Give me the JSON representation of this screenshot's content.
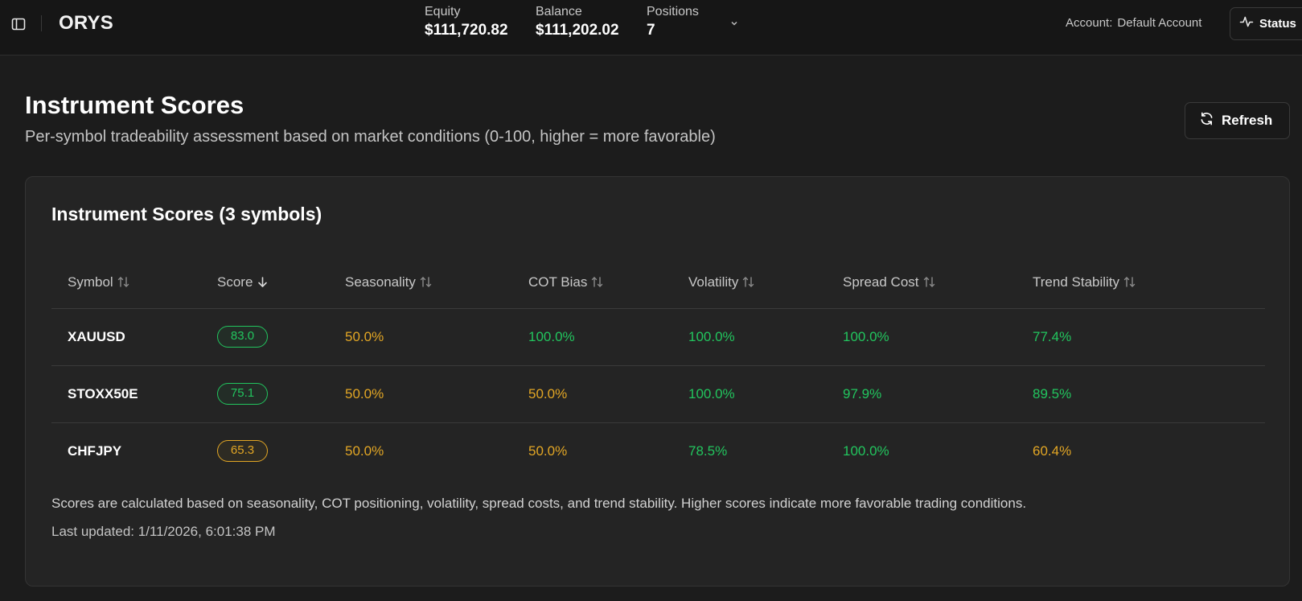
{
  "app": {
    "brand": "ORYS"
  },
  "topbar": {
    "stats": [
      {
        "label": "Equity",
        "value": "$111,720.82"
      },
      {
        "label": "Balance",
        "value": "$111,202.02"
      },
      {
        "label": "Positions",
        "value": "7"
      }
    ],
    "account_label": "Account:",
    "account_name": "Default Account",
    "status_label": "Status",
    "icons": {
      "sidebar_toggle": "sidebar-panel-icon",
      "stats_expand": "chevron-down-icon",
      "status": "activity-pulse-icon"
    }
  },
  "page": {
    "title": "Instrument Scores",
    "subtitle": "Per-symbol tradeability assessment based on market conditions (0-100, higher = more favorable)",
    "refresh_label": "Refresh"
  },
  "card": {
    "title": "Instrument Scores (3 symbols)",
    "columns": [
      {
        "label": "Symbol",
        "sort": "none"
      },
      {
        "label": "Score",
        "sort": "desc"
      },
      {
        "label": "Seasonality",
        "sort": "none"
      },
      {
        "label": "COT Bias",
        "sort": "none"
      },
      {
        "label": "Volatility",
        "sort": "none"
      },
      {
        "label": "Spread Cost",
        "sort": "none"
      },
      {
        "label": "Trend Stability",
        "sort": "none"
      }
    ],
    "rows": [
      {
        "symbol": "XAUUSD",
        "score": {
          "text": "83.0",
          "level": "green"
        },
        "seasonality": {
          "text": "50.0%",
          "level": "amber"
        },
        "cot_bias": {
          "text": "100.0%",
          "level": "green"
        },
        "volatility": {
          "text": "100.0%",
          "level": "green"
        },
        "spread_cost": {
          "text": "100.0%",
          "level": "green"
        },
        "trend_stability": {
          "text": "77.4%",
          "level": "green"
        }
      },
      {
        "symbol": "STOXX50E",
        "score": {
          "text": "75.1",
          "level": "green"
        },
        "seasonality": {
          "text": "50.0%",
          "level": "amber"
        },
        "cot_bias": {
          "text": "50.0%",
          "level": "amber"
        },
        "volatility": {
          "text": "100.0%",
          "level": "green"
        },
        "spread_cost": {
          "text": "97.9%",
          "level": "green"
        },
        "trend_stability": {
          "text": "89.5%",
          "level": "green"
        }
      },
      {
        "symbol": "CHFJPY",
        "score": {
          "text": "65.3",
          "level": "amber"
        },
        "seasonality": {
          "text": "50.0%",
          "level": "amber"
        },
        "cot_bias": {
          "text": "50.0%",
          "level": "amber"
        },
        "volatility": {
          "text": "78.5%",
          "level": "green"
        },
        "spread_cost": {
          "text": "100.0%",
          "level": "green"
        },
        "trend_stability": {
          "text": "60.4%",
          "level": "amber"
        }
      }
    ],
    "footnote": "Scores are calculated based on seasonality, COT positioning, volatility, spread costs, and trend stability. Higher scores indicate more favorable trading conditions.",
    "last_updated": "Last updated: 1/11/2026, 6:01:38 PM"
  },
  "colors": {
    "background": "#1c1c1c",
    "card": "#242424",
    "good": "#22c55e",
    "medium": "#e2a624"
  }
}
